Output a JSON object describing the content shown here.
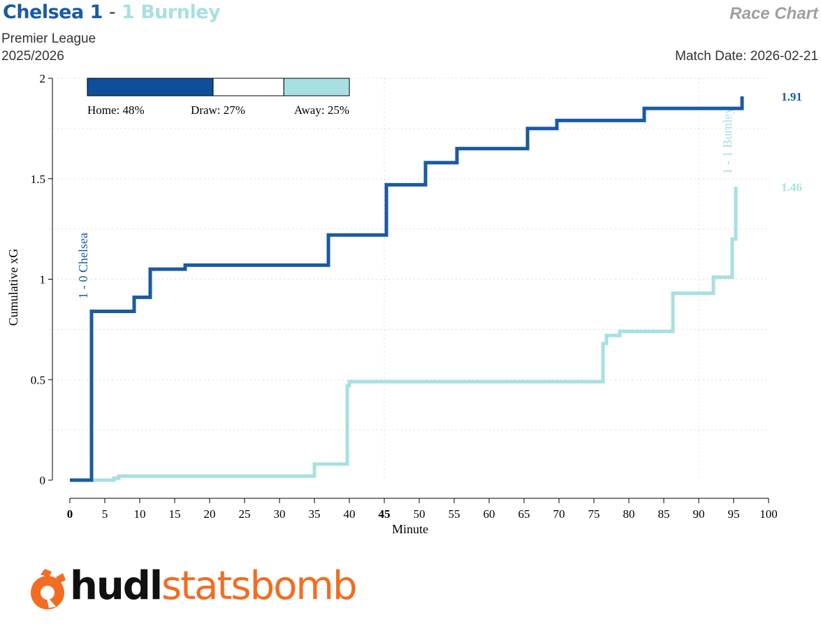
{
  "header": {
    "home_team": "Chelsea",
    "home_score": "1",
    "separator": "-",
    "away_score": "1",
    "away_team": "Burnley",
    "chart_label": "Race Chart",
    "competition": "Premier League",
    "season": "2025/2026",
    "match_date": "Match Date: 2026-02-21"
  },
  "colors": {
    "home": "#1a5aa3",
    "away": "#a8e0e1",
    "home_bar": "#0f4f99"
  },
  "probabilities": {
    "home_label": "Home: 48%",
    "draw_label": "Draw: 27%",
    "away_label": "Away: 25%",
    "home": 0.48,
    "draw": 0.27,
    "away": 0.25
  },
  "logo": {
    "hudl": "hudl",
    "statsbomb": "statsbomb",
    "icon": "statsbomb-bomb-icon"
  },
  "chart_data": {
    "type": "line",
    "xlabel": "Minute",
    "ylabel": "Cumulative xG",
    "xlim": [
      0,
      100
    ],
    "ylim": [
      0,
      2
    ],
    "xticks": [
      0,
      5,
      10,
      15,
      20,
      25,
      30,
      35,
      40,
      45,
      50,
      55,
      60,
      65,
      70,
      75,
      80,
      85,
      90,
      95,
      100
    ],
    "xtick_bold": [
      0,
      45
    ],
    "yticks": [
      0,
      0.5,
      1,
      1.5,
      2
    ],
    "grid": true,
    "series": [
      {
        "name": "Chelsea",
        "color": "#1a5aa3",
        "final_label": "1.91",
        "x": [
          0,
          3.1,
          9.2,
          11.5,
          16.5,
          37,
          45.3,
          50.9,
          55.4,
          65.5,
          69.7,
          82.2,
          96.2
        ],
        "y": [
          0,
          0.84,
          0.91,
          1.05,
          1.07,
          1.22,
          1.47,
          1.58,
          1.65,
          1.75,
          1.79,
          1.85,
          1.91
        ],
        "goal_label": "1 - 0 Chelsea",
        "goal_minute": 3.1,
        "goal_y": 0.84
      },
      {
        "name": "Burnley",
        "color": "#a8e0e1",
        "final_label": "1.46",
        "x": [
          0,
          6.3,
          7.0,
          35.0,
          39.7,
          40.0,
          76.3,
          76.8,
          78.7,
          86.3,
          92.1,
          94.8,
          95.3
        ],
        "y": [
          0,
          0.01,
          0.02,
          0.08,
          0.47,
          0.49,
          0.68,
          0.72,
          0.74,
          0.93,
          1.01,
          1.2,
          1.46
        ],
        "goal_label": "1 - 1 Burnley",
        "goal_minute": 95.3,
        "goal_y": 1.46
      }
    ]
  }
}
